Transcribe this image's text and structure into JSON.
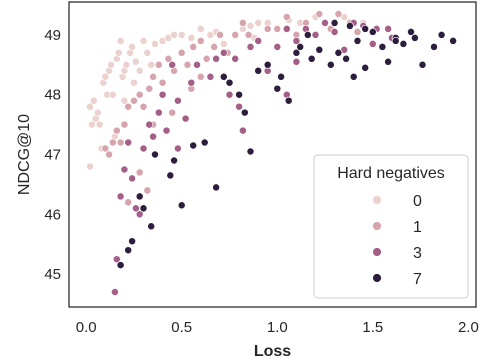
{
  "chart_data": {
    "type": "scatter",
    "title": "",
    "xlabel": "Loss",
    "ylabel": "NDCG@10",
    "xlim": [
      -0.09,
      2.04
    ],
    "ylim": [
      44.45,
      49.55
    ],
    "xticks": [
      "0.0",
      "0.5",
      "1.0",
      "1.5",
      "2.0"
    ],
    "xtick_values": [
      0.0,
      0.5,
      1.0,
      1.5,
      2.0
    ],
    "yticks": [
      "45",
      "46",
      "47",
      "48",
      "49"
    ],
    "ytick_values": [
      45,
      46,
      47,
      48,
      49
    ],
    "grid": false,
    "legend": {
      "title": "Hard negatives",
      "placement": "lower-right"
    },
    "series": [
      {
        "name": "0",
        "color": "#ebd2cf",
        "points": [
          [
            0.02,
            47.8
          ],
          [
            0.03,
            47.5
          ],
          [
            0.04,
            47.9
          ],
          [
            0.05,
            47.6
          ],
          [
            0.06,
            47.7
          ],
          [
            0.07,
            47.5
          ],
          [
            0.09,
            48.2
          ],
          [
            0.1,
            48.3
          ],
          [
            0.11,
            48.0
          ],
          [
            0.12,
            48.4
          ],
          [
            0.13,
            48.5
          ],
          [
            0.14,
            48.0
          ],
          [
            0.16,
            48.6
          ],
          [
            0.17,
            48.7
          ],
          [
            0.18,
            48.9
          ],
          [
            0.19,
            48.3
          ],
          [
            0.2,
            48.4
          ],
          [
            0.21,
            48.5
          ],
          [
            0.23,
            48.7
          ],
          [
            0.24,
            48.8
          ],
          [
            0.26,
            48.55
          ],
          [
            0.28,
            48.4
          ],
          [
            0.3,
            48.9
          ],
          [
            0.32,
            48.7
          ],
          [
            0.34,
            48.5
          ],
          [
            0.36,
            48.85
          ],
          [
            0.4,
            48.9
          ],
          [
            0.43,
            48.95
          ],
          [
            0.46,
            49.0
          ],
          [
            0.5,
            49.0
          ],
          [
            0.55,
            48.95
          ],
          [
            0.6,
            49.1
          ],
          [
            0.65,
            49.0
          ],
          [
            0.68,
            49.05
          ],
          [
            0.72,
            48.85
          ],
          [
            0.78,
            49.0
          ],
          [
            0.82,
            49.1
          ],
          [
            0.86,
            49.15
          ],
          [
            0.88,
            48.95
          ],
          [
            0.9,
            49.2
          ],
          [
            0.95,
            49.2
          ],
          [
            1.0,
            49.1
          ],
          [
            1.06,
            49.25
          ],
          [
            1.12,
            49.2
          ],
          [
            1.2,
            49.3
          ],
          [
            1.35,
            49.3
          ],
          [
            1.45,
            49.2
          ],
          [
            0.02,
            46.8
          ],
          [
            0.08,
            47.1
          ],
          [
            0.15,
            47.3
          ],
          [
            0.2,
            47.9
          ],
          [
            0.25,
            48.2
          ]
        ]
      },
      {
        "name": "1",
        "color": "#d6a4ad",
        "points": [
          [
            0.1,
            47.1
          ],
          [
            0.12,
            47.0
          ],
          [
            0.14,
            47.2
          ],
          [
            0.16,
            47.4
          ],
          [
            0.18,
            47.2
          ],
          [
            0.2,
            47.5
          ],
          [
            0.22,
            47.8
          ],
          [
            0.25,
            47.9
          ],
          [
            0.28,
            48.0
          ],
          [
            0.3,
            47.8
          ],
          [
            0.33,
            48.1
          ],
          [
            0.35,
            48.3
          ],
          [
            0.38,
            48.5
          ],
          [
            0.4,
            48.2
          ],
          [
            0.43,
            48.6
          ],
          [
            0.46,
            48.4
          ],
          [
            0.5,
            48.7
          ],
          [
            0.53,
            48.5
          ],
          [
            0.56,
            48.8
          ],
          [
            0.6,
            48.9
          ],
          [
            0.63,
            48.6
          ],
          [
            0.67,
            48.8
          ],
          [
            0.7,
            49.0
          ],
          [
            0.74,
            48.7
          ],
          [
            0.78,
            49.0
          ],
          [
            0.82,
            49.2
          ],
          [
            0.85,
            49.0
          ],
          [
            0.9,
            48.9
          ],
          [
            0.95,
            49.1
          ],
          [
            1.0,
            49.1
          ],
          [
            1.05,
            49.3
          ],
          [
            1.1,
            49.0
          ],
          [
            1.15,
            49.2
          ],
          [
            1.22,
            49.35
          ],
          [
            1.28,
            49.1
          ],
          [
            1.32,
            49.35
          ],
          [
            1.38,
            49.2
          ],
          [
            1.42,
            49.05
          ],
          [
            0.28,
            46.7
          ],
          [
            0.32,
            46.4
          ],
          [
            0.22,
            46.2
          ],
          [
            0.35,
            47.5
          ],
          [
            0.45,
            47.7
          ],
          [
            0.55,
            48.1
          ],
          [
            0.6,
            48.3
          ]
        ]
      },
      {
        "name": "3",
        "color": "#a45f89",
        "points": [
          [
            0.15,
            44.7
          ],
          [
            0.16,
            45.25
          ],
          [
            0.18,
            46.3
          ],
          [
            0.2,
            46.75
          ],
          [
            0.22,
            47.2
          ],
          [
            0.24,
            46.6
          ],
          [
            0.26,
            46.1
          ],
          [
            0.28,
            46.0
          ],
          [
            0.3,
            47.1
          ],
          [
            0.33,
            47.5
          ],
          [
            0.35,
            47.3
          ],
          [
            0.38,
            47.7
          ],
          [
            0.4,
            48.0
          ],
          [
            0.42,
            47.4
          ],
          [
            0.45,
            48.5
          ],
          [
            0.48,
            47.9
          ],
          [
            0.52,
            47.6
          ],
          [
            0.55,
            48.2
          ],
          [
            0.58,
            48.5
          ],
          [
            0.62,
            47.2
          ],
          [
            0.65,
            48.3
          ],
          [
            0.68,
            48.6
          ],
          [
            0.72,
            48.7
          ],
          [
            0.75,
            48.0
          ],
          [
            0.78,
            48.6
          ],
          [
            0.82,
            47.4
          ],
          [
            0.86,
            48.8
          ],
          [
            0.9,
            48.9
          ],
          [
            0.95,
            48.4
          ],
          [
            1.0,
            48.8
          ],
          [
            1.05,
            49.1
          ],
          [
            1.1,
            48.9
          ],
          [
            1.15,
            49.1
          ],
          [
            1.2,
            49.0
          ],
          [
            1.25,
            49.2
          ],
          [
            1.3,
            49.05
          ],
          [
            1.35,
            48.75
          ],
          [
            1.4,
            49.2
          ],
          [
            1.45,
            49.15
          ],
          [
            1.5,
            48.85
          ],
          [
            1.52,
            49.1
          ],
          [
            1.58,
            49.1
          ],
          [
            1.6,
            48.95
          ],
          [
            1.05,
            48.0
          ],
          [
            1.1,
            48.55
          ],
          [
            0.48,
            47.1
          ],
          [
            0.8,
            47.8
          ]
        ]
      },
      {
        "name": "7",
        "color": "#2d1e3e",
        "points": [
          [
            0.18,
            45.15
          ],
          [
            0.22,
            45.4
          ],
          [
            0.24,
            45.55
          ],
          [
            0.28,
            46.3
          ],
          [
            0.3,
            46.1
          ],
          [
            0.34,
            45.8
          ],
          [
            0.36,
            47.0
          ],
          [
            0.44,
            46.65
          ],
          [
            0.46,
            46.9
          ],
          [
            0.5,
            46.15
          ],
          [
            0.56,
            47.15
          ],
          [
            0.62,
            47.2
          ],
          [
            0.68,
            46.45
          ],
          [
            0.72,
            48.3
          ],
          [
            0.75,
            48.2
          ],
          [
            0.8,
            48.0
          ],
          [
            0.83,
            47.7
          ],
          [
            0.86,
            47.05
          ],
          [
            0.9,
            48.4
          ],
          [
            0.95,
            48.5
          ],
          [
            1.0,
            48.1
          ],
          [
            1.02,
            48.3
          ],
          [
            1.06,
            47.9
          ],
          [
            1.1,
            48.7
          ],
          [
            1.12,
            48.8
          ],
          [
            1.16,
            49.0
          ],
          [
            1.18,
            48.6
          ],
          [
            1.22,
            48.75
          ],
          [
            1.28,
            48.5
          ],
          [
            1.32,
            48.7
          ],
          [
            1.36,
            48.6
          ],
          [
            1.4,
            48.3
          ],
          [
            1.42,
            48.9
          ],
          [
            1.46,
            49.1
          ],
          [
            1.5,
            49.05
          ],
          [
            1.55,
            48.8
          ],
          [
            1.58,
            48.55
          ],
          [
            1.62,
            48.95
          ],
          [
            1.66,
            48.85
          ],
          [
            1.7,
            49.05
          ],
          [
            1.72,
            48.95
          ],
          [
            1.76,
            48.5
          ],
          [
            1.82,
            48.8
          ],
          [
            1.86,
            49.0
          ],
          [
            1.92,
            48.9
          ],
          [
            1.3,
            49.2
          ],
          [
            1.38,
            49.15
          ],
          [
            1.62,
            48.9
          ],
          [
            1.46,
            48.45
          ]
        ]
      }
    ]
  }
}
